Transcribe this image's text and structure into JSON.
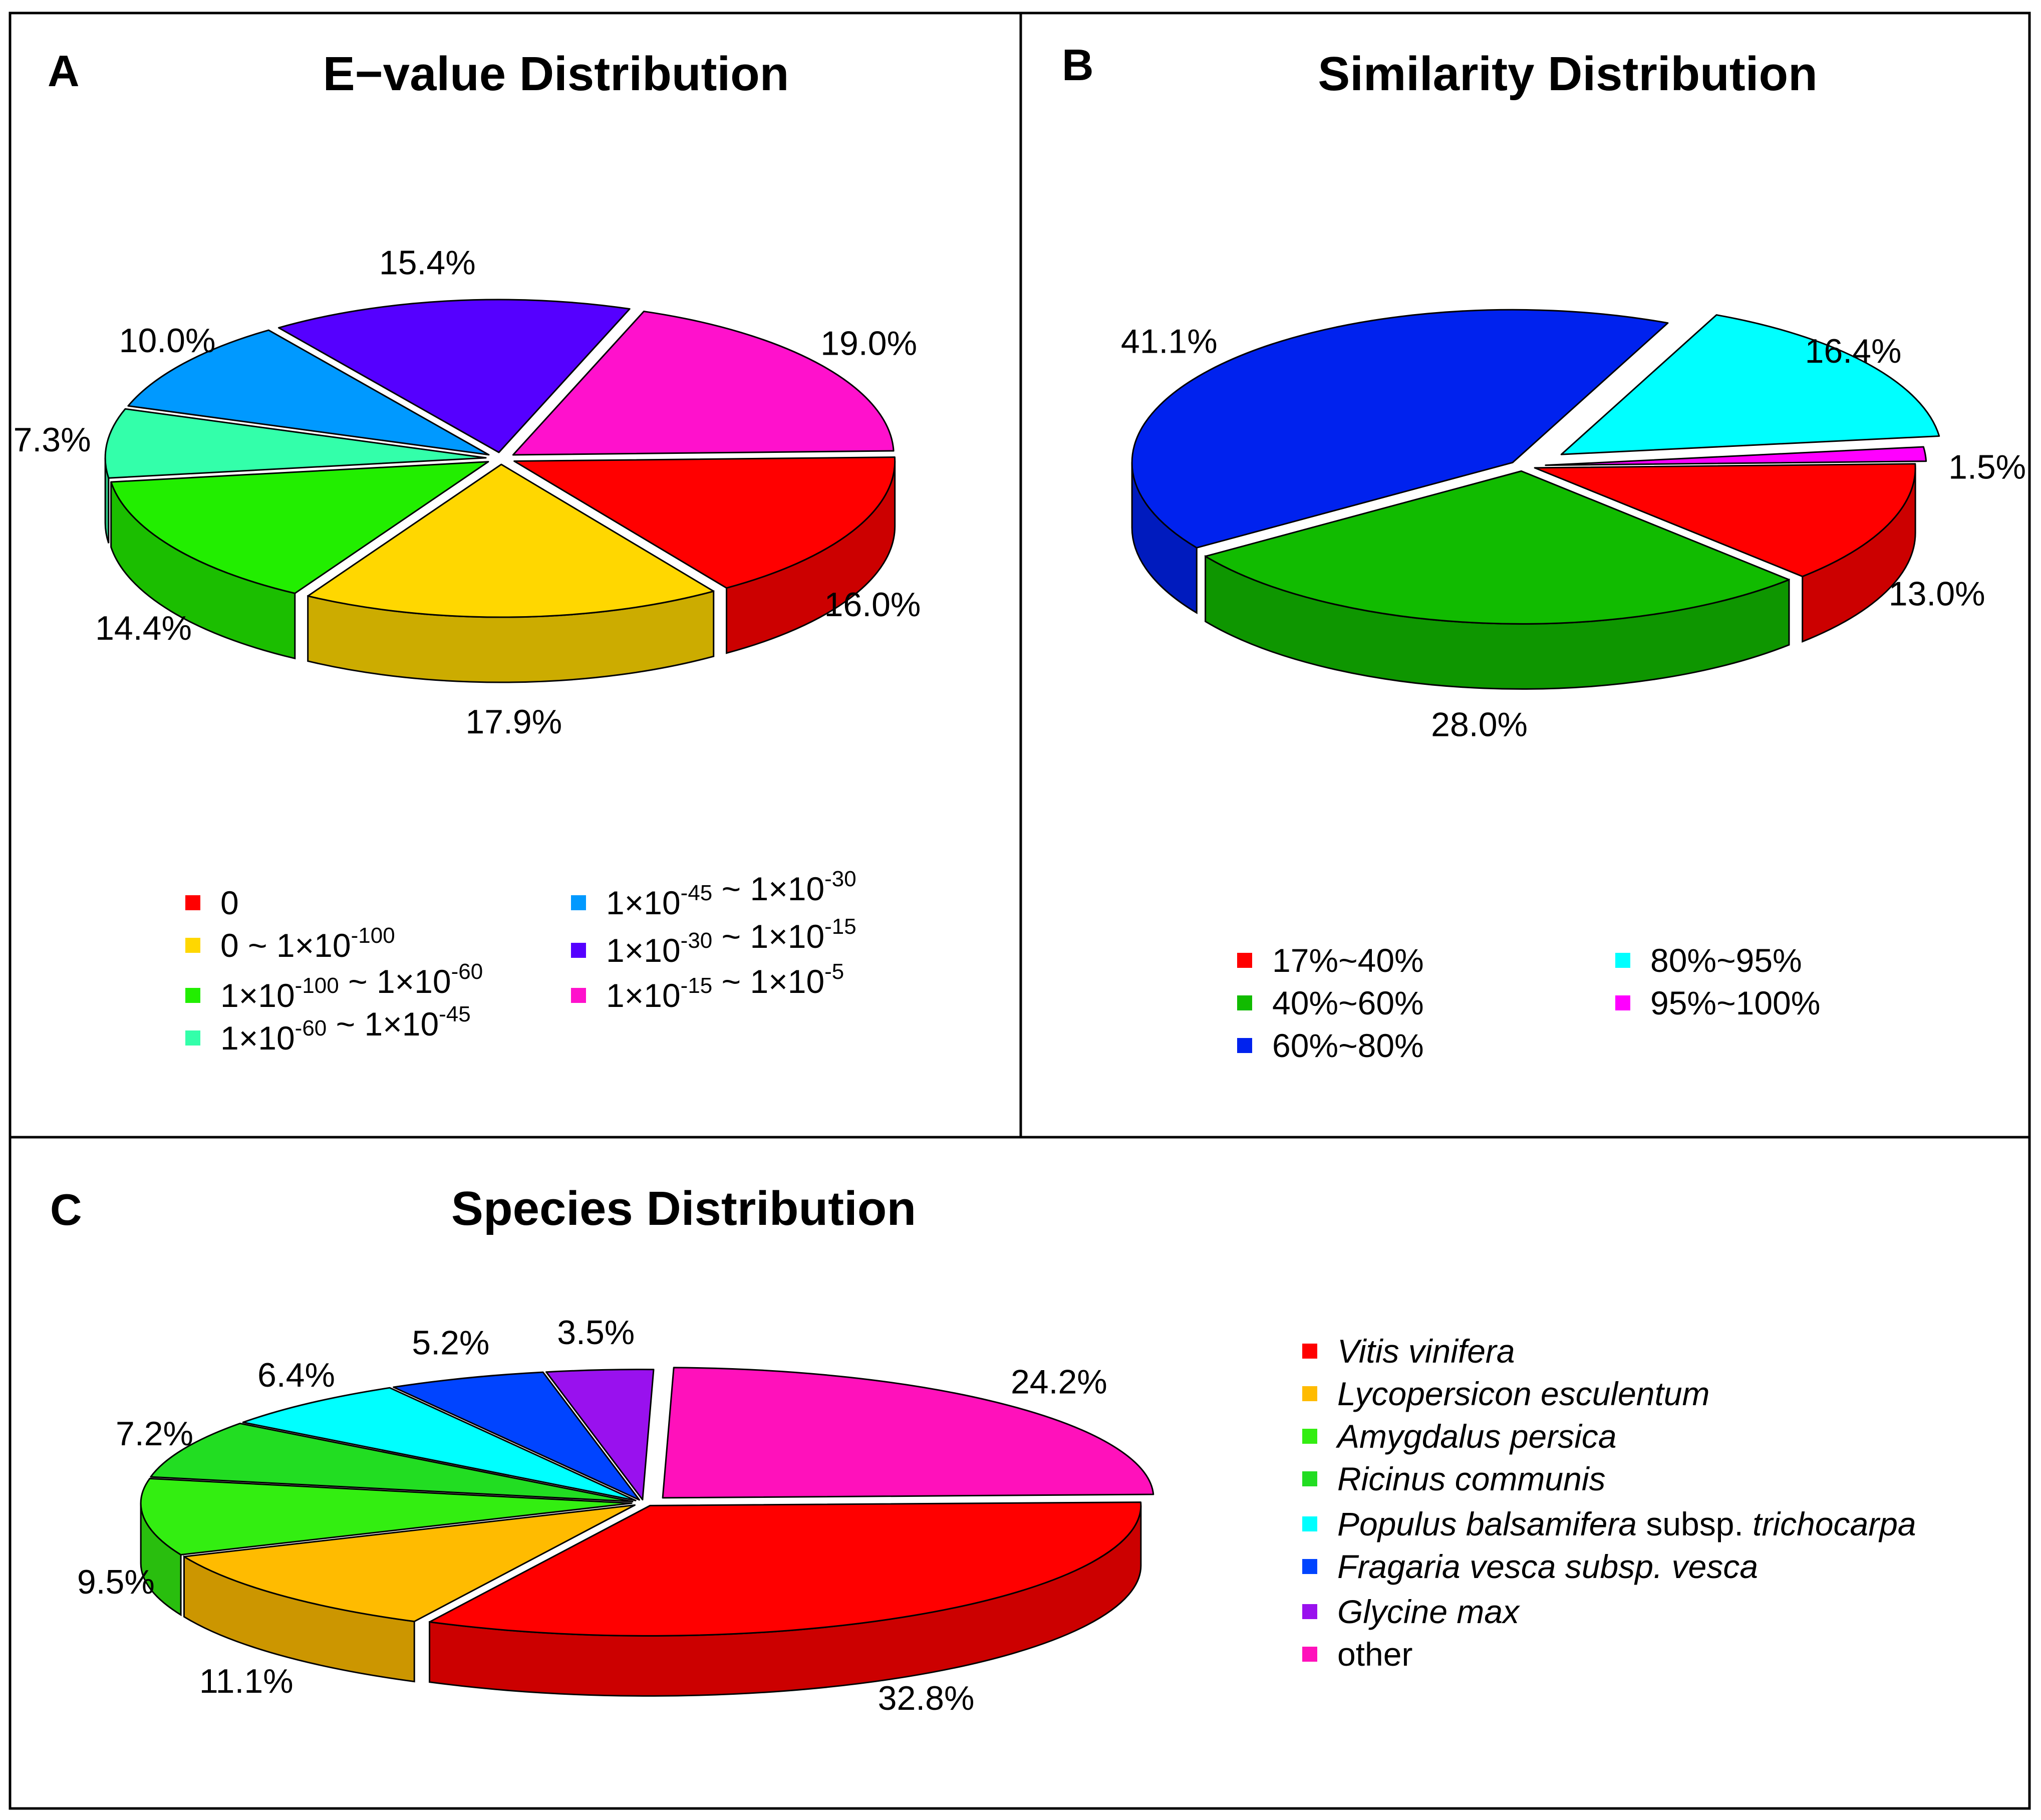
{
  "figure": {
    "panels": [
      "A",
      "B",
      "C"
    ]
  },
  "chart_data": [
    {
      "type": "pie",
      "panel": "A",
      "title": "E−value Distribution",
      "categories": [
        "0",
        "0 ~ 1×10-100",
        "1×10-100 ~ 1×10-60",
        "1×10-60 ~ 1×10-45",
        "1×10-45 ~ 1×10-30",
        "1×10-30 ~ 1×10-15",
        "1×10-15 ~ 1×10-5"
      ],
      "values": [
        16.0,
        17.9,
        14.4,
        7.3,
        10.0,
        15.4,
        19.0
      ],
      "labels": [
        "16.0%",
        "17.9%",
        "14.4%",
        "7.3%",
        "10.0%",
        "15.4%",
        "19.0%"
      ],
      "colors": [
        "#ff0000",
        "#ffd700",
        "#22ee00",
        "#33ffaa",
        "#0099ff",
        "#5500ff",
        "#ff11cc"
      ],
      "legend": [
        {
          "key": "0",
          "text": [
            {
              "t": "0"
            }
          ]
        },
        {
          "key": "0 ~ 1×10-100",
          "text": [
            {
              "t": "0 ~ 1×10"
            },
            {
              "t": "-100",
              "sup": true
            }
          ]
        },
        {
          "key": "1×10-100 ~ 1×10-60",
          "text": [
            {
              "t": "1×10"
            },
            {
              "t": "-100",
              "sup": true
            },
            {
              "t": " ~ 1×10"
            },
            {
              "t": "-60",
              "sup": true
            }
          ]
        },
        {
          "key": "1×10-60 ~ 1×10-45",
          "text": [
            {
              "t": "1×10"
            },
            {
              "t": "-60",
              "sup": true
            },
            {
              "t": "  ~ 1×10"
            },
            {
              "t": "-45",
              "sup": true
            }
          ]
        },
        {
          "key": "1×10-45 ~ 1×10-30",
          "text": [
            {
              "t": "1×10"
            },
            {
              "t": "-45",
              "sup": true
            },
            {
              "t": " ~ 1×10"
            },
            {
              "t": "-30",
              "sup": true
            }
          ]
        },
        {
          "key": "1×10-30 ~ 1×10-15",
          "text": [
            {
              "t": "1×10"
            },
            {
              "t": "-30",
              "sup": true
            },
            {
              "t": " ~ 1×10"
            },
            {
              "t": "-15",
              "sup": true
            }
          ]
        },
        {
          "key": "1×10-15 ~ 1×10-5",
          "text": [
            {
              "t": "1×10"
            },
            {
              "t": "-15",
              "sup": true
            },
            {
              "t": " ~ 1×10"
            },
            {
              "t": "-5",
              "sup": true
            }
          ]
        }
      ],
      "legend_position": "bottom"
    },
    {
      "type": "pie",
      "panel": "B",
      "title": "Similarity Distribution",
      "categories": [
        "17%~40%",
        "40%~60%",
        "60%~80%",
        "80%~95%",
        "95%~100%"
      ],
      "values": [
        13.0,
        28.0,
        41.1,
        16.4,
        1.5
      ],
      "labels": [
        "13.0%",
        "28.0%",
        "41.1%",
        "16.4%",
        "1.5%"
      ],
      "colors": [
        "#ff0000",
        "#11bb00",
        "#0022ee",
        "#00ffff",
        "#ff00ff"
      ],
      "legend": [
        {
          "key": "17%~40%",
          "text": [
            {
              "t": "17%~40%"
            }
          ]
        },
        {
          "key": "40%~60%",
          "text": [
            {
              "t": "40%~60%"
            }
          ]
        },
        {
          "key": "60%~80%",
          "text": [
            {
              "t": "60%~80%"
            }
          ]
        },
        {
          "key": "80%~95%",
          "text": [
            {
              "t": "80%~95%"
            }
          ]
        },
        {
          "key": "95%~100%",
          "text": [
            {
              "t": "95%~100%"
            }
          ]
        }
      ],
      "legend_position": "bottom"
    },
    {
      "type": "pie",
      "panel": "C",
      "title": "Species Distribution",
      "categories": [
        "Vitis vinifera",
        "Lycopersicon esculentum",
        "Amygdalus persica",
        "Ricinus communis",
        "Populus balsamifera subsp. trichocarpa",
        "Fragaria vesca subsp. vesca",
        "Glycine max",
        "other"
      ],
      "values": [
        32.8,
        11.1,
        9.5,
        7.2,
        6.4,
        5.2,
        3.5,
        24.2
      ],
      "labels": [
        "32.8%",
        "11.1%",
        "9.5%",
        "7.2%",
        "6.4%",
        "5.2%",
        "3.5%",
        "24.2%"
      ],
      "colors": [
        "#ff0000",
        "#ffbb00",
        "#33ee11",
        "#22dd22",
        "#00ffff",
        "#0044ff",
        "#9911ee",
        "#ff11bb"
      ],
      "legend": [
        {
          "key": "Vitis vinifera",
          "text": [
            {
              "t": "Vitis vinifera",
              "it": true
            }
          ]
        },
        {
          "key": "Lycopersicon esculentum",
          "text": [
            {
              "t": "Lycopersicon esculentum",
              "it": true
            }
          ]
        },
        {
          "key": "Amygdalus persica",
          "text": [
            {
              "t": "Amygdalus persica",
              "it": true
            }
          ]
        },
        {
          "key": "Ricinus communis",
          "text": [
            {
              "t": "Ricinus communis",
              "it": true
            }
          ]
        },
        {
          "key": "Populus balsamifera subsp. trichocarpa",
          "text": [
            {
              "t": "Populus balsamifera",
              "it": true
            },
            {
              "t": " subsp. "
            },
            {
              "t": "trichocarpa",
              "it": true
            }
          ]
        },
        {
          "key": "Fragaria vesca subsp. vesca",
          "text": [
            {
              "t": "Fragaria vesca subsp. vesca",
              "it": true
            }
          ]
        },
        {
          "key": "Glycine max",
          "text": [
            {
              "t": "Glycine max",
              "it": true
            }
          ]
        },
        {
          "key": "other",
          "text": [
            {
              "t": "other"
            }
          ]
        }
      ],
      "legend_position": "right"
    }
  ]
}
